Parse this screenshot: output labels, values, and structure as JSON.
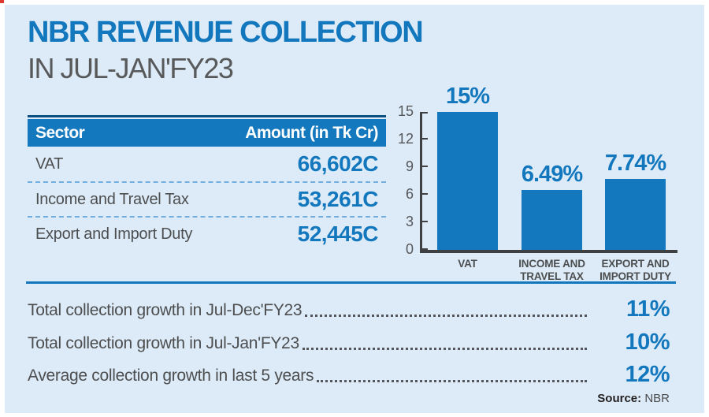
{
  "title": "NBR REVENUE COLLECTION",
  "subtitle": "IN JUL-JAN'FY23",
  "table": {
    "headers": {
      "sector": "Sector",
      "amount": "Amount (in Tk Cr)"
    },
    "rows": [
      {
        "sector": "VAT",
        "amount": "66,602C"
      },
      {
        "sector": "Income and Travel Tax",
        "amount": "53,261C"
      },
      {
        "sector": "Export and Import Duty",
        "amount": "52,445C"
      }
    ]
  },
  "chart_data": {
    "type": "bar",
    "categories": [
      "VAT",
      "INCOME AND\nTRAVEL TAX",
      "EXPORT AND\nIMPORT DUTY"
    ],
    "values": [
      15,
      6.49,
      7.74
    ],
    "data_labels": [
      "15%",
      "6.49%",
      "7.74%"
    ],
    "yticks": [
      0,
      3,
      6,
      9,
      12,
      15
    ],
    "ylim": [
      0,
      15
    ],
    "grid": false,
    "legend": false,
    "bar_color": "#1378be",
    "axis_color": "#3f4042"
  },
  "stats": [
    {
      "label": "Total collection growth in Jul-Dec'FY23",
      "value": "11%"
    },
    {
      "label": "Total collection growth in Jul-Jan'FY23",
      "value": "10%"
    },
    {
      "label": "Average collection growth in last 5 years",
      "value": "12%"
    }
  ],
  "source": {
    "label": "Source:",
    "value": "NBR"
  },
  "colors": {
    "panel_bg": "#dcebf7",
    "accent_blue": "#1377bd",
    "header_bg": "#1478be",
    "header_topline": "#0b4f83",
    "text_gray": "#4d4e50",
    "divider_blue": "#1377bd",
    "corner_mark_red": "#e0392f"
  }
}
